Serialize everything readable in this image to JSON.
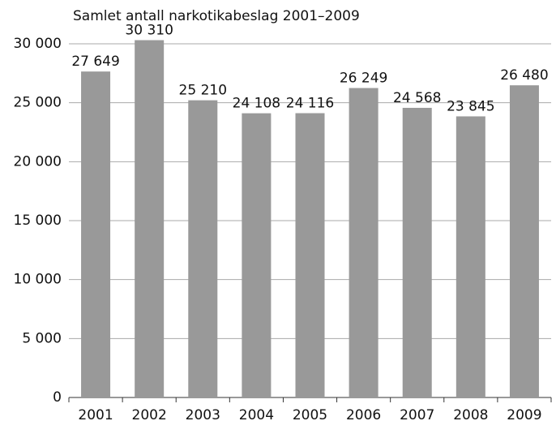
{
  "chart_data": {
    "type": "bar",
    "title": "Samlet antall narkotikabeslag 2001–2009",
    "categories": [
      "2001",
      "2002",
      "2003",
      "2004",
      "2005",
      "2006",
      "2007",
      "2008",
      "2009"
    ],
    "values": [
      27649,
      30310,
      25210,
      24108,
      24116,
      26249,
      24568,
      23845,
      26480
    ],
    "value_labels": [
      "27 649",
      "30 310",
      "25 210",
      "24 108",
      "24 116",
      "26 249",
      "24 568",
      "23 845",
      "26 480"
    ],
    "color": "#999999",
    "ylim": [
      0,
      30000
    ],
    "yticks": [
      0,
      {
        "value": 5000,
        "label": "5 000"
      },
      {
        "value": 10000,
        "label": "10 000"
      },
      {
        "value": 15000,
        "label": "15 000"
      },
      {
        "value": 20000,
        "label": "20 000"
      },
      {
        "value": 25000,
        "label": "25 000"
      },
      {
        "value": 30000,
        "label": "30 000"
      }
    ],
    "grid": true
  }
}
